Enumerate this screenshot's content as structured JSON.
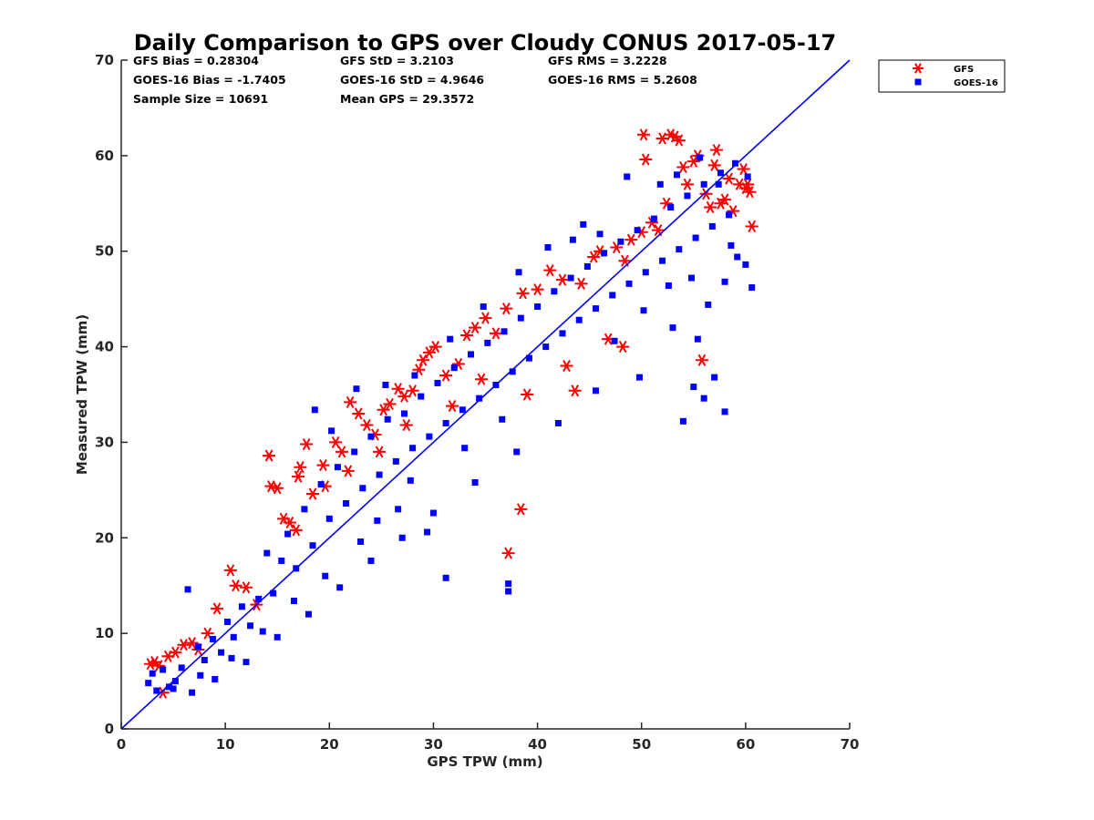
{
  "chart_data": {
    "type": "scatter",
    "title": "Daily Comparison to GPS over Cloudy CONUS 2017-05-17",
    "xlabel": "GPS TPW (mm)",
    "ylabel": "Measured TPW (mm)",
    "xlim": [
      0,
      70
    ],
    "ylim": [
      0,
      70
    ],
    "xticks": [
      "0",
      "10",
      "20",
      "30",
      "40",
      "50",
      "60",
      "70"
    ],
    "yticks": [
      "0",
      "10",
      "20",
      "30",
      "40",
      "50",
      "60",
      "70"
    ],
    "grid": false,
    "legend_position": "outside-top-right",
    "stats": [
      "GFS Bias = 0.28304",
      "GFS StD = 3.2103",
      "GFS RMS = 3.2228",
      "GOES-16 Bias = -1.7405",
      "GOES-16 StD = 4.9646",
      "GOES-16 RMS = 5.2608",
      "Sample Size = 10691",
      "Mean GPS = 29.3572"
    ],
    "reference_line": {
      "x": [
        0,
        70
      ],
      "y": [
        0,
        70
      ],
      "color": "#0000ff"
    },
    "series": [
      {
        "name": "GFS",
        "marker": "asterisk",
        "color": "#ff0000",
        "points": [
          [
            2.8,
            6.8
          ],
          [
            3.2,
            7.0
          ],
          [
            3.6,
            6.6
          ],
          [
            4.0,
            3.8
          ],
          [
            4.5,
            7.6
          ],
          [
            5.2,
            8.0
          ],
          [
            6.0,
            8.8
          ],
          [
            6.8,
            9.0
          ],
          [
            7.4,
            8.3
          ],
          [
            8.3,
            10.0
          ],
          [
            9.2,
            12.6
          ],
          [
            10.5,
            16.6
          ],
          [
            11.0,
            15.0
          ],
          [
            12.0,
            14.8
          ],
          [
            13.0,
            13.0
          ],
          [
            14.2,
            28.6
          ],
          [
            14.4,
            25.4
          ],
          [
            15.0,
            25.2
          ],
          [
            15.6,
            22.0
          ],
          [
            16.2,
            21.6
          ],
          [
            17.0,
            26.4
          ],
          [
            17.2,
            27.4
          ],
          [
            17.8,
            29.8
          ],
          [
            18.4,
            24.6
          ],
          [
            19.4,
            27.6
          ],
          [
            20.6,
            30.0
          ],
          [
            21.2,
            29.0
          ],
          [
            22.0,
            34.2
          ],
          [
            22.8,
            33.0
          ],
          [
            23.6,
            31.8
          ],
          [
            24.4,
            30.8
          ],
          [
            25.2,
            33.4
          ],
          [
            25.8,
            34.0
          ],
          [
            26.6,
            35.6
          ],
          [
            27.2,
            34.8
          ],
          [
            28.0,
            35.4
          ],
          [
            28.6,
            37.6
          ],
          [
            29.0,
            38.6
          ],
          [
            29.6,
            39.4
          ],
          [
            30.2,
            40.0
          ],
          [
            31.2,
            37.0
          ],
          [
            32.4,
            38.2
          ],
          [
            33.2,
            41.2
          ],
          [
            34.0,
            42.0
          ],
          [
            35.0,
            43.0
          ],
          [
            36.0,
            41.4
          ],
          [
            37.0,
            44.0
          ],
          [
            37.2,
            18.4
          ],
          [
            38.4,
            23.0
          ],
          [
            38.6,
            45.6
          ],
          [
            39.0,
            35.0
          ],
          [
            40.0,
            46.0
          ],
          [
            41.2,
            48.0
          ],
          [
            42.4,
            47.0
          ],
          [
            43.6,
            35.4
          ],
          [
            44.2,
            46.6
          ],
          [
            45.4,
            49.4
          ],
          [
            46.0,
            50.0
          ],
          [
            47.6,
            50.4
          ],
          [
            48.4,
            49.0
          ],
          [
            49.0,
            51.2
          ],
          [
            50.0,
            52.0
          ],
          [
            50.2,
            62.2
          ],
          [
            50.4,
            59.6
          ],
          [
            51.0,
            53.0
          ],
          [
            51.6,
            52.2
          ],
          [
            52.0,
            61.8
          ],
          [
            52.4,
            55.0
          ],
          [
            52.8,
            62.2
          ],
          [
            53.2,
            62.0
          ],
          [
            53.6,
            61.6
          ],
          [
            54.0,
            58.8
          ],
          [
            54.4,
            57.0
          ],
          [
            55.0,
            59.4
          ],
          [
            55.4,
            60.0
          ],
          [
            55.8,
            38.6
          ],
          [
            56.2,
            56.0
          ],
          [
            56.6,
            54.6
          ],
          [
            57.0,
            59.0
          ],
          [
            57.2,
            60.6
          ],
          [
            57.6,
            55.0
          ],
          [
            58.0,
            55.4
          ],
          [
            58.4,
            57.6
          ],
          [
            58.8,
            54.2
          ],
          [
            59.4,
            57.0
          ],
          [
            59.8,
            58.6
          ],
          [
            60.0,
            56.6
          ],
          [
            60.2,
            57.0
          ],
          [
            60.4,
            56.2
          ],
          [
            60.6,
            52.6
          ],
          [
            46.8,
            40.8
          ],
          [
            48.2,
            40.0
          ],
          [
            42.8,
            38.0
          ],
          [
            34.6,
            36.6
          ],
          [
            31.8,
            33.8
          ],
          [
            27.4,
            31.8
          ],
          [
            24.8,
            29.0
          ],
          [
            21.8,
            27.0
          ],
          [
            19.6,
            25.4
          ],
          [
            16.8,
            20.8
          ]
        ]
      },
      {
        "name": "GOES-16",
        "marker": "square",
        "color": "#0000ff",
        "points": [
          [
            2.6,
            4.8
          ],
          [
            3.0,
            5.8
          ],
          [
            3.4,
            4.0
          ],
          [
            4.0,
            6.2
          ],
          [
            4.6,
            4.4
          ],
          [
            5.2,
            5.0
          ],
          [
            5.8,
            6.4
          ],
          [
            6.4,
            14.6
          ],
          [
            6.8,
            3.8
          ],
          [
            7.4,
            8.6
          ],
          [
            8.0,
            7.2
          ],
          [
            8.8,
            9.4
          ],
          [
            9.6,
            8.0
          ],
          [
            10.2,
            11.2
          ],
          [
            10.8,
            9.6
          ],
          [
            11.6,
            12.8
          ],
          [
            12.4,
            10.8
          ],
          [
            13.2,
            13.6
          ],
          [
            14.0,
            18.4
          ],
          [
            14.6,
            14.2
          ],
          [
            15.4,
            17.6
          ],
          [
            16.0,
            20.4
          ],
          [
            16.8,
            16.8
          ],
          [
            17.6,
            23.0
          ],
          [
            18.4,
            19.2
          ],
          [
            19.2,
            25.6
          ],
          [
            20.0,
            22.0
          ],
          [
            20.8,
            27.4
          ],
          [
            21.6,
            23.6
          ],
          [
            22.4,
            29.0
          ],
          [
            23.2,
            25.2
          ],
          [
            24.0,
            30.6
          ],
          [
            24.8,
            26.6
          ],
          [
            25.6,
            32.4
          ],
          [
            26.4,
            28.0
          ],
          [
            27.2,
            33.0
          ],
          [
            28.0,
            29.4
          ],
          [
            28.8,
            34.8
          ],
          [
            29.6,
            30.6
          ],
          [
            30.4,
            36.2
          ],
          [
            31.2,
            32.0
          ],
          [
            32.0,
            37.8
          ],
          [
            32.8,
            33.4
          ],
          [
            33.6,
            39.2
          ],
          [
            34.4,
            34.6
          ],
          [
            35.2,
            40.4
          ],
          [
            36.0,
            36.0
          ],
          [
            36.8,
            41.6
          ],
          [
            37.2,
            15.2
          ],
          [
            37.2,
            14.4
          ],
          [
            37.6,
            37.4
          ],
          [
            38.4,
            43.0
          ],
          [
            39.2,
            38.8
          ],
          [
            40.0,
            44.2
          ],
          [
            40.8,
            40.0
          ],
          [
            41.6,
            45.8
          ],
          [
            42.4,
            41.4
          ],
          [
            43.2,
            47.2
          ],
          [
            44.0,
            42.8
          ],
          [
            44.8,
            48.4
          ],
          [
            45.6,
            44.0
          ],
          [
            46.4,
            49.8
          ],
          [
            47.2,
            45.4
          ],
          [
            48.0,
            51.0
          ],
          [
            48.8,
            46.6
          ],
          [
            49.6,
            52.2
          ],
          [
            50.4,
            47.8
          ],
          [
            51.2,
            53.4
          ],
          [
            52.0,
            49.0
          ],
          [
            52.8,
            54.6
          ],
          [
            53.6,
            50.2
          ],
          [
            54.4,
            55.8
          ],
          [
            55.2,
            51.4
          ],
          [
            56.0,
            57.0
          ],
          [
            56.8,
            52.6
          ],
          [
            57.6,
            58.2
          ],
          [
            58.4,
            53.8
          ],
          [
            59.2,
            49.4
          ],
          [
            60.0,
            48.6
          ],
          [
            60.6,
            46.2
          ],
          [
            54.0,
            32.2
          ],
          [
            55.0,
            35.8
          ],
          [
            56.0,
            34.6
          ],
          [
            57.0,
            36.8
          ],
          [
            58.0,
            33.2
          ],
          [
            55.4,
            40.8
          ],
          [
            53.0,
            42.0
          ],
          [
            49.8,
            36.8
          ],
          [
            45.6,
            35.4
          ],
          [
            42.0,
            32.0
          ],
          [
            38.0,
            29.0
          ],
          [
            34.0,
            25.8
          ],
          [
            30.0,
            22.6
          ],
          [
            27.0,
            20.0
          ],
          [
            24.0,
            17.6
          ],
          [
            21.0,
            14.8
          ],
          [
            18.0,
            12.0
          ],
          [
            15.0,
            9.6
          ],
          [
            12.0,
            7.0
          ],
          [
            9.0,
            5.2
          ],
          [
            31.2,
            15.8
          ],
          [
            29.4,
            20.6
          ],
          [
            26.6,
            23.0
          ],
          [
            23.0,
            19.6
          ],
          [
            19.6,
            16.0
          ],
          [
            16.6,
            13.4
          ],
          [
            13.6,
            10.2
          ],
          [
            10.6,
            7.4
          ],
          [
            7.6,
            5.6
          ],
          [
            5.0,
            4.2
          ],
          [
            44.4,
            52.8
          ],
          [
            46.0,
            51.8
          ],
          [
            48.6,
            57.8
          ],
          [
            51.8,
            57.0
          ],
          [
            53.4,
            58.0
          ],
          [
            55.6,
            59.8
          ],
          [
            57.4,
            57.0
          ],
          [
            59.0,
            59.2
          ],
          [
            60.2,
            57.8
          ],
          [
            58.6,
            50.6
          ],
          [
            18.6,
            33.4
          ],
          [
            20.2,
            31.2
          ],
          [
            22.6,
            35.6
          ],
          [
            25.4,
            36.0
          ],
          [
            28.2,
            37.0
          ],
          [
            31.6,
            40.8
          ],
          [
            34.8,
            44.2
          ],
          [
            38.2,
            47.8
          ],
          [
            41.0,
            50.4
          ],
          [
            43.4,
            51.2
          ],
          [
            47.4,
            40.6
          ],
          [
            50.2,
            43.8
          ],
          [
            52.6,
            46.4
          ],
          [
            54.8,
            47.2
          ],
          [
            56.4,
            44.4
          ],
          [
            58.0,
            46.8
          ],
          [
            36.6,
            32.4
          ],
          [
            33.0,
            29.4
          ],
          [
            27.8,
            26.0
          ],
          [
            24.6,
            21.8
          ]
        ]
      }
    ]
  }
}
